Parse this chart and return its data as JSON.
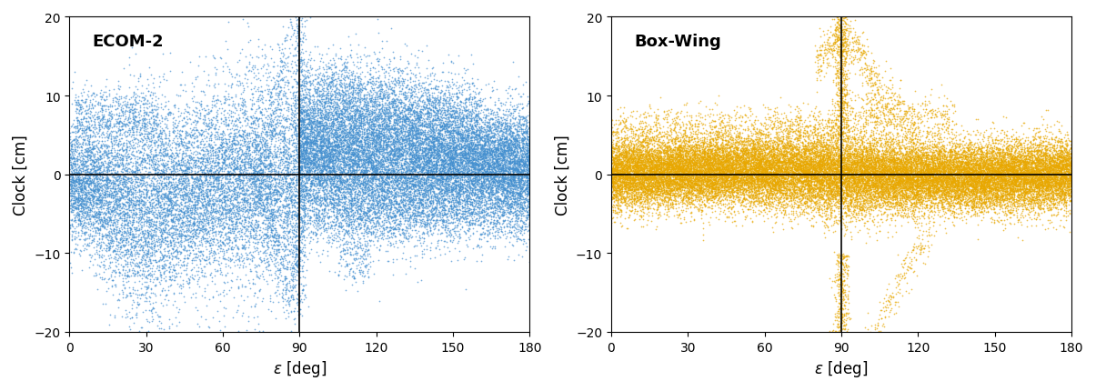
{
  "ecom2_label": "ECOM-2",
  "boxwing_label": "Box-Wing",
  "ecom2_color": "#4490D0",
  "boxwing_color": "#E8A800",
  "xlabel": "$\\epsilon$ [deg]",
  "ylabel": "Clock [cm]",
  "xlim": [
    0,
    180
  ],
  "ylim": [
    -20,
    20
  ],
  "xticks": [
    0,
    30,
    60,
    90,
    120,
    150,
    180
  ],
  "yticks": [
    -20,
    -10,
    0,
    10,
    20
  ],
  "vline": 90,
  "hline": 0,
  "seed": 42
}
